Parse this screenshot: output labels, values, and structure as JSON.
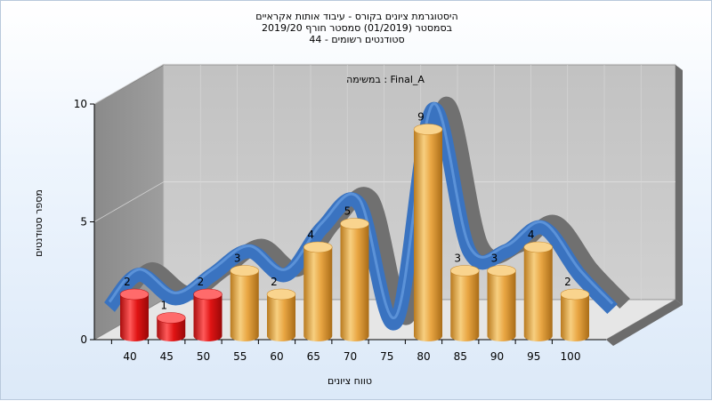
{
  "chart_data": {
    "type": "bar",
    "title_lines": [
      "היסטוגרמת ציונים בקורס - עיבוד אותות אקראיים",
      "בסמסטר  (01/2019)  סמסטר חורף 2019/20",
      "סטודנטים רשומים - 44"
    ],
    "annotation": "במשימה : Final_A",
    "xlabel": "טווח ציונים",
    "ylabel": "מספר סטודנטים",
    "categories": [
      "40",
      "45",
      "50",
      "55",
      "60",
      "65",
      "70",
      "75",
      "80",
      "85",
      "90",
      "95",
      "100"
    ],
    "values": [
      2,
      1,
      2,
      3,
      2,
      4,
      5,
      0,
      9,
      3,
      3,
      4,
      2
    ],
    "data_labels": [
      "2",
      "1",
      "2",
      "3",
      "2",
      "4",
      "5",
      "",
      "9",
      "3",
      "3",
      "4",
      "2"
    ],
    "y_ticks": [
      "0",
      "5",
      "10"
    ],
    "ylim": [
      0,
      10
    ],
    "bar_style": "3d-cylinder",
    "bar_colors": [
      "red",
      "red",
      "red",
      "orange",
      "orange",
      "orange",
      "orange",
      "orange",
      "orange",
      "orange",
      "orange",
      "orange",
      "orange"
    ],
    "colors": {
      "fail": "#e01010",
      "pass": "#e8a53c",
      "curve": "#3a73c0",
      "curve_back": "#707070",
      "wall": "#8e8e8e",
      "plot_back": "#c8c8c8"
    },
    "trend_curve": true,
    "grid": true
  }
}
